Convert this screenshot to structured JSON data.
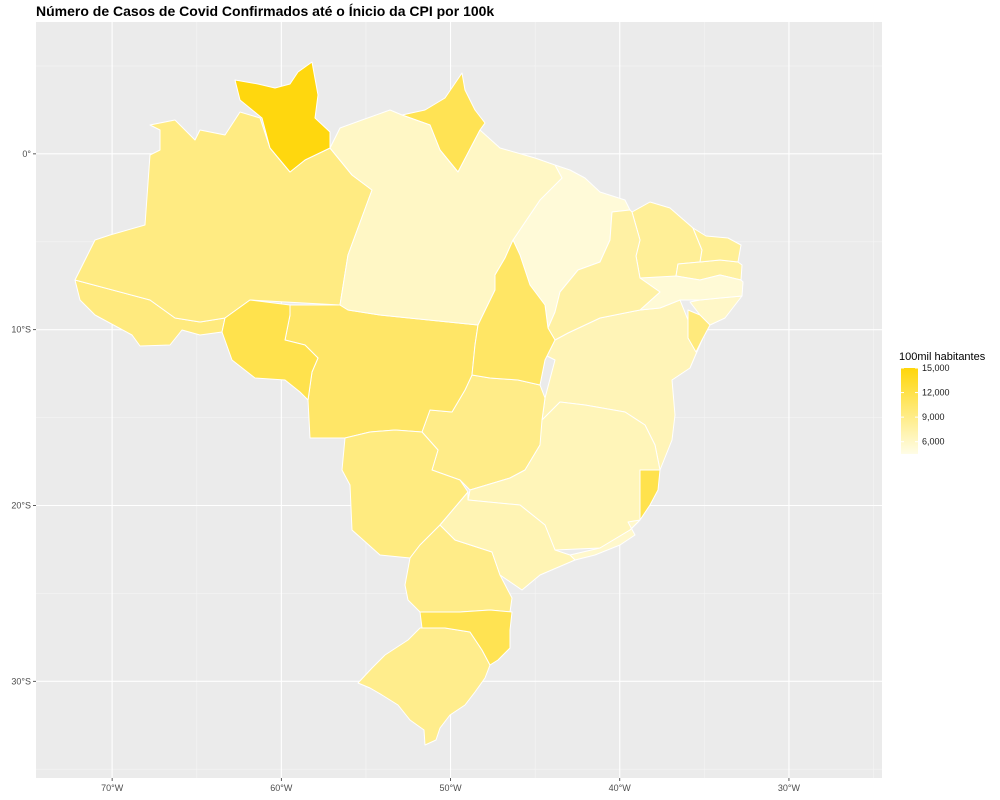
{
  "chart_data": {
    "type": "choropleth",
    "title": "Número de Casos de Covid Confirmados até o Ínicio da CPI por 100k",
    "xlabel": "",
    "ylabel": "",
    "x_ticks": [
      {
        "value": -70,
        "label": "70°W"
      },
      {
        "value": -60,
        "label": "60°W"
      },
      {
        "value": -50,
        "label": "50°W"
      },
      {
        "value": -40,
        "label": "40°W"
      },
      {
        "value": -30,
        "label": "30°W"
      }
    ],
    "y_ticks": [
      {
        "value": 0,
        "label": "0°"
      },
      {
        "value": -10,
        "label": "10°S"
      },
      {
        "value": -20,
        "label": "20°S"
      },
      {
        "value": -30,
        "label": "30°S"
      }
    ],
    "xlim": [
      -74.5,
      -24.5
    ],
    "ylim": [
      -35.5,
      7.5
    ],
    "grid": true,
    "legend": {
      "title": "100mil habitantes",
      "placement": "right",
      "min": 4500,
      "max": 15000,
      "breaks": [
        {
          "value": 15000,
          "label": "15,000"
        },
        {
          "value": 12000,
          "label": "12,000"
        },
        {
          "value": 9000,
          "label": "9,000"
        },
        {
          "value": 6000,
          "label": "6,000"
        }
      ],
      "color_low": "#FFFDE7",
      "color_high": "#FFD60A"
    },
    "series": [
      {
        "values": [
          {
            "state": "AC",
            "value": 9500
          },
          {
            "state": "AL",
            "value": 6000
          },
          {
            "state": "AP",
            "value": 11500
          },
          {
            "state": "AM",
            "value": 9300
          },
          {
            "state": "BA",
            "value": 6800
          },
          {
            "state": "CE",
            "value": 8300
          },
          {
            "state": "DF",
            "value": 12500
          },
          {
            "state": "ES",
            "value": 11800
          },
          {
            "state": "GO",
            "value": 9000
          },
          {
            "state": "MA",
            "value": 5200
          },
          {
            "state": "MT",
            "value": 10600
          },
          {
            "state": "MS",
            "value": 9400
          },
          {
            "state": "MG",
            "value": 6700
          },
          {
            "state": "PA",
            "value": 6100
          },
          {
            "state": "PB",
            "value": 7800
          },
          {
            "state": "PR",
            "value": 9000
          },
          {
            "state": "PE",
            "value": 5300
          },
          {
            "state": "PI",
            "value": 7700
          },
          {
            "state": "RJ",
            "value": 5800
          },
          {
            "state": "RN",
            "value": 8400
          },
          {
            "state": "RS",
            "value": 8800
          },
          {
            "state": "RO",
            "value": 11800
          },
          {
            "state": "RR",
            "value": 14800
          },
          {
            "state": "SC",
            "value": 11600
          },
          {
            "state": "SP",
            "value": 6900
          },
          {
            "state": "SE",
            "value": 9600
          },
          {
            "state": "TO",
            "value": 10700
          }
        ]
      }
    ]
  }
}
